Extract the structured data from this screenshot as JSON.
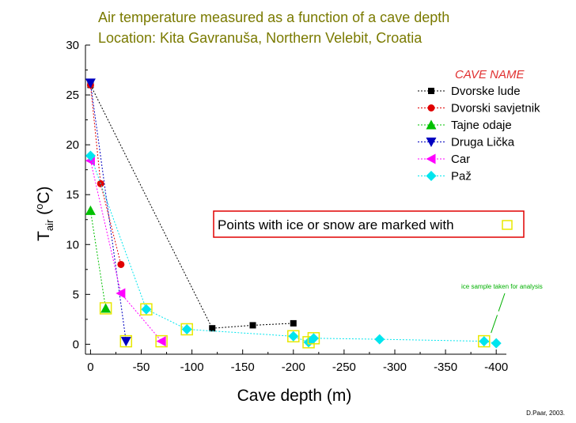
{
  "chart_data": {
    "type": "scatter",
    "title": "Air temperature measured as a function of a cave depth",
    "subtitle": "Location: Kita Gavranuša, Northern Velebit, Croatia",
    "xlabel": "Cave depth (m)",
    "ylabel": {
      "base": "T",
      "sub": "air",
      "open": " (",
      "sup": "o",
      "unit": "C)"
    },
    "xlim": [
      5,
      -410
    ],
    "ylim": [
      -1,
      30
    ],
    "xticks": [
      0,
      -50,
      -100,
      -150,
      -200,
      -250,
      -300,
      -350,
      -400
    ],
    "yticks": [
      0,
      5,
      10,
      15,
      20,
      25,
      30
    ],
    "grid": false,
    "legend": {
      "title": "CAVE NAME",
      "placement": "top-right"
    },
    "series": [
      {
        "name": "Dvorske lude",
        "color": "#000000",
        "marker": "square",
        "x": [
          0,
          -120,
          -160,
          -200
        ],
        "y": [
          26,
          1.6,
          1.9,
          2.1
        ],
        "ice": [
          false,
          false,
          false,
          false
        ]
      },
      {
        "name": "Dvorski savjetnik",
        "color": "#e00000",
        "marker": "circle",
        "x": [
          0,
          -10,
          -30
        ],
        "y": [
          26,
          16.1,
          8.0
        ],
        "ice": [
          false,
          false,
          false
        ]
      },
      {
        "name": "Tajne odaje",
        "color": "#00c000",
        "marker": "triangle-up",
        "x": [
          0,
          -15
        ],
        "y": [
          13.4,
          3.6
        ],
        "ice": [
          false,
          true
        ]
      },
      {
        "name": "Druga Lička",
        "color": "#0000c0",
        "marker": "triangle-down",
        "x": [
          0,
          -35
        ],
        "y": [
          26.2,
          0.3
        ],
        "ice": [
          false,
          true
        ]
      },
      {
        "name": "Car",
        "color": "#ff00ff",
        "marker": "triangle-left",
        "x": [
          0,
          -30,
          -70
        ],
        "y": [
          18.4,
          5.1,
          0.3
        ],
        "ice": [
          false,
          false,
          true
        ]
      },
      {
        "name": "Paž",
        "color": "#00e5ee",
        "marker": "diamond",
        "x": [
          0,
          -55,
          -95,
          -200,
          -215,
          -220,
          -285,
          -388,
          -400
        ],
        "y": [
          18.9,
          3.5,
          1.5,
          0.8,
          0.2,
          0.6,
          0.5,
          0.3,
          0.1
        ],
        "ice": [
          false,
          true,
          true,
          true,
          true,
          true,
          false,
          true,
          false
        ]
      }
    ],
    "ice_note": "Points with ice or snow are marked with",
    "ice_color": "#e8e800",
    "annotation": {
      "text": "ice sample taken for analysis",
      "color": "#00b000",
      "point_x": -388,
      "point_y": 0.3
    }
  },
  "credit": "D.Paar, 2003."
}
